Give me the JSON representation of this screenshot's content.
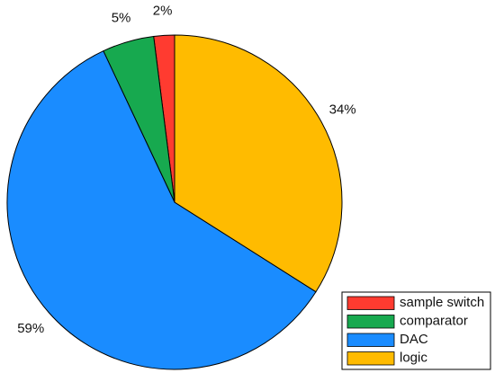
{
  "chart_data": {
    "type": "pie",
    "categories": [
      "sample switch",
      "comparator",
      "DAC",
      "logic"
    ],
    "values": [
      2,
      5,
      59,
      34
    ],
    "value_labels": [
      "2%",
      "5%",
      "59%",
      "34%"
    ],
    "colors": [
      "#ff3b30",
      "#17a94f",
      "#1a8cff",
      "#ffbb00"
    ],
    "legend": "lower right"
  }
}
